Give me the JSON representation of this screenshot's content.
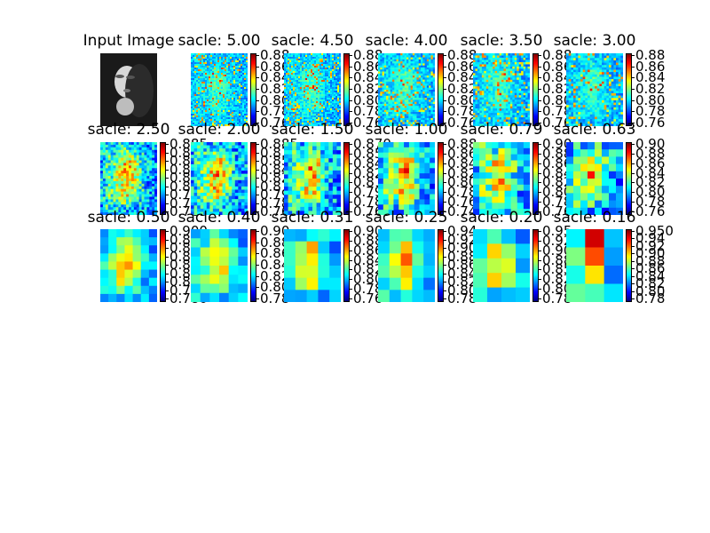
{
  "colors": {
    "colormap": "jet",
    "background": "#ffffff"
  },
  "chart_data": {
    "type": "heatmap",
    "colormap": "jet",
    "panels": [
      {
        "title": "Input Image",
        "kind": "photo"
      },
      {
        "title": "sacle: 5.00",
        "ticks": [
          "0.88",
          "0.86",
          "0.84",
          "0.82",
          "0.80",
          "0.78",
          "0.76"
        ]
      },
      {
        "title": "sacle: 4.50",
        "ticks": [
          "0.88",
          "0.86",
          "0.84",
          "0.82",
          "0.80",
          "0.78",
          "0.76"
        ]
      },
      {
        "title": "sacle: 4.00",
        "ticks": [
          "0.88",
          "0.86",
          "0.84",
          "0.82",
          "0.80",
          "0.78",
          "0.76"
        ]
      },
      {
        "title": "sacle: 3.50",
        "ticks": [
          "0.88",
          "0.86",
          "0.84",
          "0.82",
          "0.80",
          "0.78",
          "0.76"
        ]
      },
      {
        "title": "sacle: 3.00",
        "ticks": [
          "0.88",
          "0.86",
          "0.84",
          "0.82",
          "0.80",
          "0.78",
          "0.76"
        ]
      },
      {
        "title": "sacle: 2.50",
        "ticks": [
          "0.885",
          "0.870",
          "0.855",
          "0.840",
          "0.825",
          "0.810",
          "0.795",
          "0.780",
          "0.765"
        ]
      },
      {
        "title": "sacle: 2.00",
        "ticks": [
          "0.885",
          "0.870",
          "0.855",
          "0.840",
          "0.825",
          "0.810",
          "0.795",
          "0.780",
          "0.765"
        ]
      },
      {
        "title": "sacle: 1.50",
        "ticks": [
          "0.870",
          "0.855",
          "0.840",
          "0.825",
          "0.810",
          "0.795",
          "0.780",
          "0.765"
        ]
      },
      {
        "title": "sacle: 1.00",
        "ticks": [
          "0.88",
          "0.86",
          "0.84",
          "0.82",
          "0.80",
          "0.78",
          "0.76",
          "0.74"
        ]
      },
      {
        "title": "sacle: 0.79",
        "ticks": [
          "0.90",
          "0.88",
          "0.86",
          "0.84",
          "0.82",
          "0.80",
          "0.78",
          "0.76"
        ]
      },
      {
        "title": "sacle: 0.63",
        "ticks": [
          "0.90",
          "0.88",
          "0.86",
          "0.84",
          "0.82",
          "0.80",
          "0.78",
          "0.76"
        ]
      },
      {
        "title": "sacle: 0.50",
        "ticks": [
          "0.900",
          "0.885",
          "0.870",
          "0.855",
          "0.840",
          "0.825",
          "0.810",
          "0.795",
          "0.780"
        ]
      },
      {
        "title": "sacle: 0.40",
        "ticks": [
          "0.90",
          "0.88",
          "0.86",
          "0.84",
          "0.82",
          "0.80",
          "0.78"
        ]
      },
      {
        "title": "sacle: 0.31",
        "ticks": [
          "0.90",
          "0.88",
          "0.86",
          "0.84",
          "0.82",
          "0.80",
          "0.78",
          "0.76"
        ]
      },
      {
        "title": "sacle: 0.25",
        "ticks": [
          "0.94",
          "0.92",
          "0.90",
          "0.88",
          "0.86",
          "0.84",
          "0.82",
          "0.80",
          "0.78"
        ]
      },
      {
        "title": "sacle: 0.20",
        "ticks": [
          "0.95",
          "0.92",
          "0.90",
          "0.88",
          "0.85",
          "0.82",
          "0.80",
          "0.78"
        ]
      },
      {
        "title": "sacle: 0.16",
        "ticks": [
          "0.950",
          "0.94",
          "0.92",
          "0.90",
          "0.88",
          "0.86",
          "0.84",
          "0.82",
          "0.80",
          "0.78"
        ]
      }
    ]
  }
}
